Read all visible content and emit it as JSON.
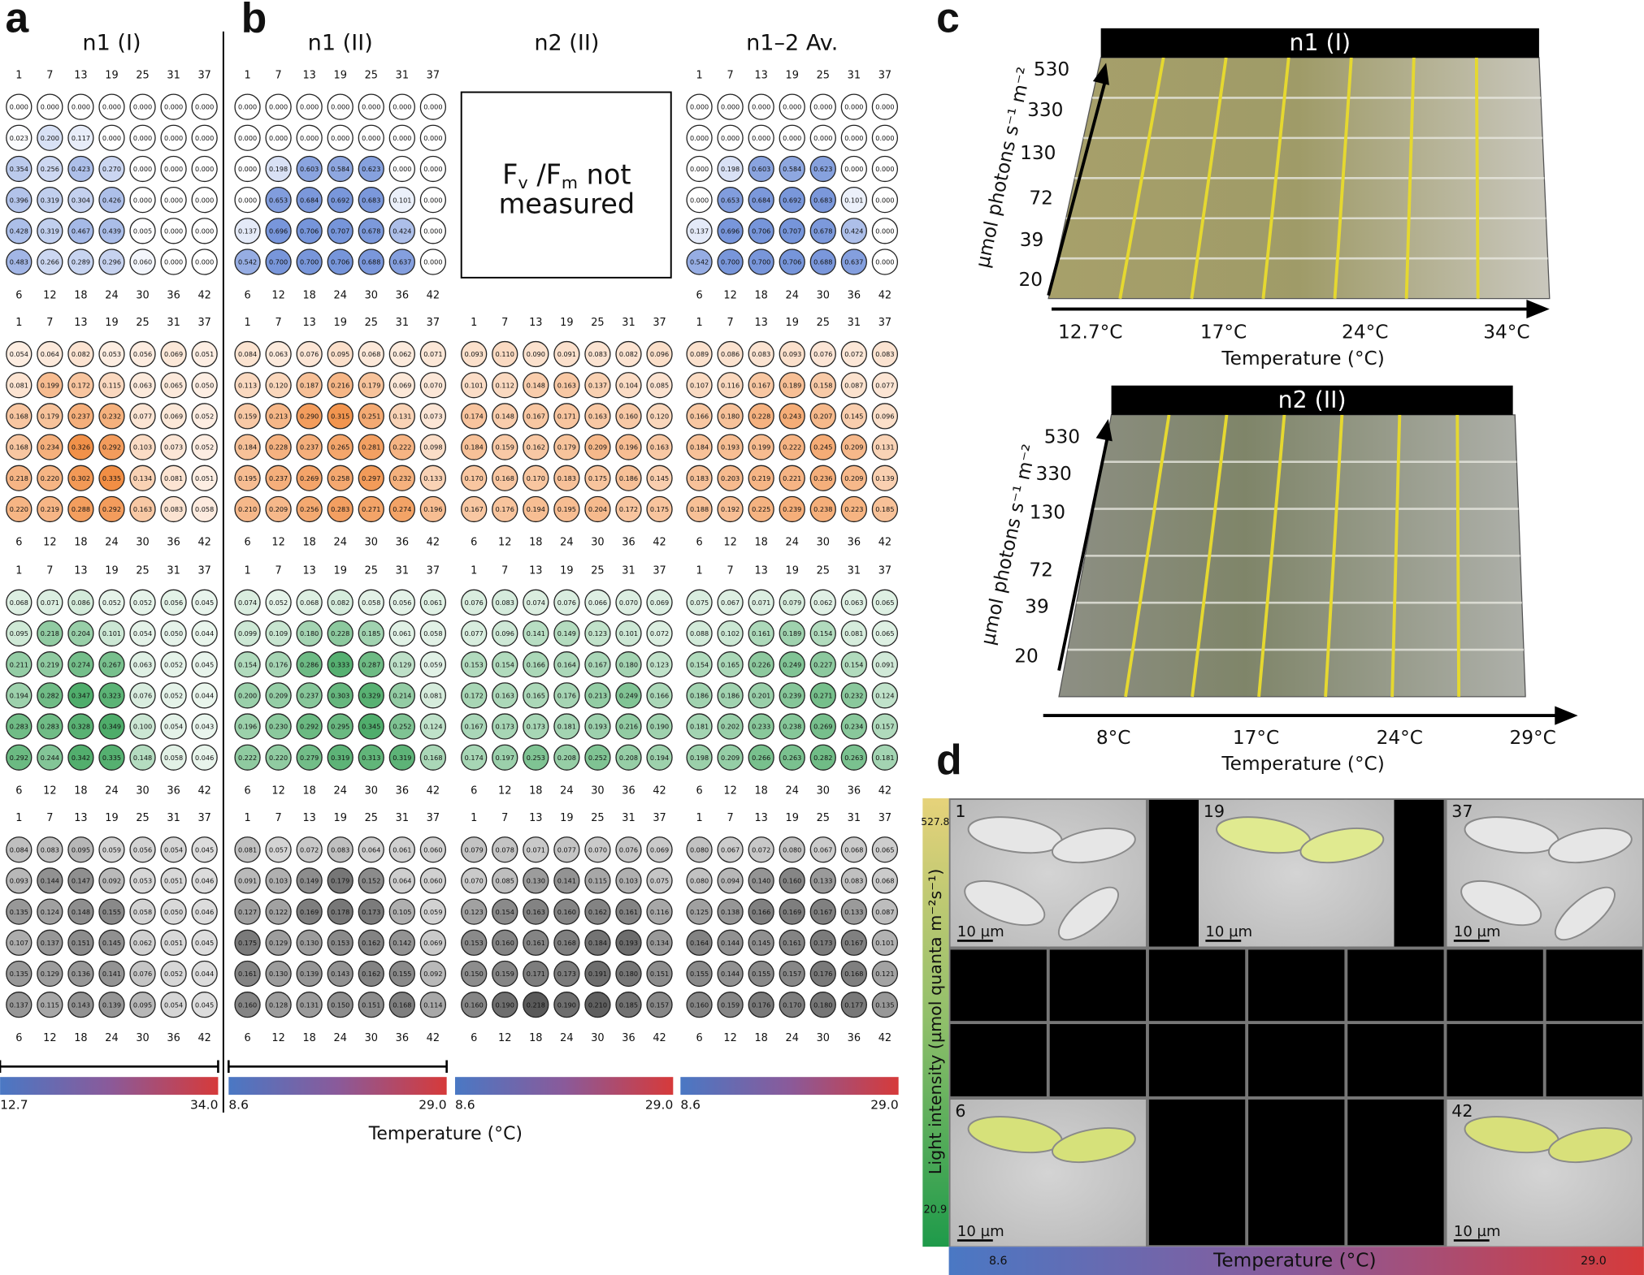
{
  "panel_labels": [
    "a",
    "b",
    "c",
    "d"
  ],
  "well_labels": {
    "top": [
      1,
      7,
      13,
      19,
      25,
      31,
      37
    ],
    "bottom": [
      6,
      12,
      18,
      24,
      30,
      36,
      42
    ]
  },
  "block_colors": [
    "#6f8fd8",
    "#f0883a",
    "#45a862",
    "#505050"
  ],
  "panel_a": {
    "title": "n1 (I)",
    "blocks": [
      [
        [
          "0.000",
          "0.000",
          "0.000",
          "0.000",
          "0.000",
          "0.000",
          "0.000"
        ],
        [
          "0.023",
          "0.200",
          "0.117",
          "0.000",
          "0.000",
          "0.000",
          "0.000"
        ],
        [
          "0.354",
          "0.256",
          "0.423",
          "0.270",
          "0.000",
          "0.000",
          "0.000"
        ],
        [
          "0.396",
          "0.319",
          "0.304",
          "0.426",
          "0.000",
          "0.000",
          "0.000"
        ],
        [
          "0.428",
          "0.319",
          "0.467",
          "0.439",
          "0.005",
          "0.000",
          "0.000"
        ],
        [
          "0.483",
          "0.266",
          "0.289",
          "0.296",
          "0.060",
          "0.000",
          "0.000"
        ]
      ],
      [
        [
          "0.054",
          "0.064",
          "0.082",
          "0.053",
          "0.056",
          "0.069",
          "0.051"
        ],
        [
          "0.081",
          "0.199",
          "0.172",
          "0.115",
          "0.063",
          "0.065",
          "0.050"
        ],
        [
          "0.168",
          "0.179",
          "0.237",
          "0.232",
          "0.077",
          "0.069",
          "0.052"
        ],
        [
          "0.168",
          "0.234",
          "0.326",
          "0.292",
          "0.103",
          "0.073",
          "0.052"
        ],
        [
          "0.218",
          "0.220",
          "0.302",
          "0.335",
          "0.134",
          "0.081",
          "0.051"
        ],
        [
          "0.220",
          "0.219",
          "0.288",
          "0.292",
          "0.163",
          "0.083",
          "0.058"
        ]
      ],
      [
        [
          "0.068",
          "0.071",
          "0.086",
          "0.052",
          "0.052",
          "0.056",
          "0.045"
        ],
        [
          "0.095",
          "0.218",
          "0.204",
          "0.101",
          "0.054",
          "0.050",
          "0.044"
        ],
        [
          "0.211",
          "0.219",
          "0.274",
          "0.267",
          "0.063",
          "0.052",
          "0.045"
        ],
        [
          "0.194",
          "0.282",
          "0.347",
          "0.323",
          "0.076",
          "0.052",
          "0.044"
        ],
        [
          "0.283",
          "0.283",
          "0.328",
          "0.349",
          "0.100",
          "0.054",
          "0.043"
        ],
        [
          "0.292",
          "0.244",
          "0.342",
          "0.335",
          "0.148",
          "0.058",
          "0.046"
        ]
      ],
      [
        [
          "0.084",
          "0.083",
          "0.095",
          "0.059",
          "0.056",
          "0.054",
          "0.045"
        ],
        [
          "0.093",
          "0.144",
          "0.147",
          "0.092",
          "0.053",
          "0.051",
          "0.046"
        ],
        [
          "0.135",
          "0.124",
          "0.148",
          "0.155",
          "0.058",
          "0.050",
          "0.046"
        ],
        [
          "0.107",
          "0.137",
          "0.151",
          "0.145",
          "0.062",
          "0.051",
          "0.045"
        ],
        [
          "0.135",
          "0.129",
          "0.136",
          "0.141",
          "0.076",
          "0.052",
          "0.044"
        ],
        [
          "0.137",
          "0.115",
          "0.143",
          "0.139",
          "0.095",
          "0.054",
          "0.045"
        ]
      ]
    ],
    "colorbar": {
      "min": "12.7",
      "max": "34.0"
    }
  },
  "panel_b": {
    "axis_label": "Temperature (°C)",
    "groups": [
      {
        "title": "n1 (II)",
        "blocks": [
          [
            [
              "0.000",
              "0.000",
              "0.000",
              "0.000",
              "0.000",
              "0.000",
              "0.000"
            ],
            [
              "0.000",
              "0.000",
              "0.000",
              "0.000",
              "0.000",
              "0.000",
              "0.000"
            ],
            [
              "0.000",
              "0.198",
              "0.603",
              "0.584",
              "0.623",
              "0.000",
              "0.000"
            ],
            [
              "0.000",
              "0.653",
              "0.684",
              "0.692",
              "0.683",
              "0.101",
              "0.000"
            ],
            [
              "0.137",
              "0.696",
              "0.706",
              "0.707",
              "0.678",
              "0.424",
              "0.000"
            ],
            [
              "0.542",
              "0.700",
              "0.700",
              "0.706",
              "0.688",
              "0.637",
              "0.000"
            ]
          ],
          [
            [
              "0.084",
              "0.063",
              "0.076",
              "0.095",
              "0.068",
              "0.062",
              "0.071"
            ],
            [
              "0.113",
              "0.120",
              "0.187",
              "0.216",
              "0.179",
              "0.069",
              "0.070"
            ],
            [
              "0.159",
              "0.213",
              "0.290",
              "0.315",
              "0.251",
              "0.131",
              "0.073"
            ],
            [
              "0.184",
              "0.228",
              "0.237",
              "0.265",
              "0.281",
              "0.222",
              "0.098"
            ],
            [
              "0.195",
              "0.237",
              "0.269",
              "0.258",
              "0.297",
              "0.232",
              "0.133"
            ],
            [
              "0.210",
              "0.209",
              "0.256",
              "0.283",
              "0.271",
              "0.274",
              "0.196"
            ]
          ],
          [
            [
              "0.074",
              "0.052",
              "0.068",
              "0.082",
              "0.058",
              "0.056",
              "0.061"
            ],
            [
              "0.099",
              "0.109",
              "0.180",
              "0.228",
              "0.185",
              "0.061",
              "0.058"
            ],
            [
              "0.154",
              "0.176",
              "0.286",
              "0.333",
              "0.287",
              "0.129",
              "0.059"
            ],
            [
              "0.200",
              "0.209",
              "0.237",
              "0.303",
              "0.329",
              "0.214",
              "0.081"
            ],
            [
              "0.196",
              "0.230",
              "0.292",
              "0.295",
              "0.345",
              "0.252",
              "0.124"
            ],
            [
              "0.222",
              "0.220",
              "0.279",
              "0.319",
              "0.313",
              "0.319",
              "0.168"
            ]
          ],
          [
            [
              "0.081",
              "0.057",
              "0.072",
              "0.083",
              "0.064",
              "0.061",
              "0.060"
            ],
            [
              "0.091",
              "0.103",
              "0.149",
              "0.179",
              "0.152",
              "0.064",
              "0.060"
            ],
            [
              "0.127",
              "0.122",
              "0.169",
              "0.178",
              "0.173",
              "0.105",
              "0.059"
            ],
            [
              "0.175",
              "0.129",
              "0.130",
              "0.153",
              "0.162",
              "0.142",
              "0.069"
            ],
            [
              "0.161",
              "0.130",
              "0.139",
              "0.143",
              "0.162",
              "0.155",
              "0.092"
            ],
            [
              "0.160",
              "0.128",
              "0.131",
              "0.150",
              "0.151",
              "0.168",
              "0.114"
            ]
          ]
        ],
        "colorbar": {
          "min": "8.6",
          "max": "29.0"
        }
      },
      {
        "title": "n2 (II)",
        "note": {
          "f1": "F",
          "sub1": "v",
          "f2": " /F",
          "sub2": "m",
          "rest": " not",
          "line2": "measured"
        },
        "blocks": [
          [
            [
              "0.093",
              "0.110",
              "0.090",
              "0.091",
              "0.083",
              "0.082",
              "0.096"
            ],
            [
              "0.101",
              "0.112",
              "0.148",
              "0.163",
              "0.137",
              "0.104",
              "0.085"
            ],
            [
              "0.174",
              "0.148",
              "0.167",
              "0.171",
              "0.163",
              "0.160",
              "0.120"
            ],
            [
              "0.184",
              "0.159",
              "0.162",
              "0.179",
              "0.209",
              "0.196",
              "0.163"
            ],
            [
              "0.170",
              "0.168",
              "0.170",
              "0.183",
              "0.175",
              "0.186",
              "0.145"
            ],
            [
              "0.167",
              "0.176",
              "0.194",
              "0.195",
              "0.204",
              "0.172",
              "0.175"
            ]
          ],
          [
            [
              "0.076",
              "0.083",
              "0.074",
              "0.076",
              "0.066",
              "0.070",
              "0.069"
            ],
            [
              "0.077",
              "0.096",
              "0.141",
              "0.149",
              "0.123",
              "0.101",
              "0.072"
            ],
            [
              "0.153",
              "0.154",
              "0.166",
              "0.164",
              "0.167",
              "0.180",
              "0.123"
            ],
            [
              "0.172",
              "0.163",
              "0.165",
              "0.176",
              "0.213",
              "0.249",
              "0.166"
            ],
            [
              "0.167",
              "0.173",
              "0.173",
              "0.181",
              "0.193",
              "0.216",
              "0.190"
            ],
            [
              "0.174",
              "0.197",
              "0.253",
              "0.208",
              "0.252",
              "0.208",
              "0.194"
            ]
          ],
          [
            [
              "0.079",
              "0.078",
              "0.071",
              "0.077",
              "0.070",
              "0.076",
              "0.069"
            ],
            [
              "0.070",
              "0.085",
              "0.130",
              "0.141",
              "0.115",
              "0.103",
              "0.075"
            ],
            [
              "0.123",
              "0.154",
              "0.163",
              "0.160",
              "0.162",
              "0.161",
              "0.116"
            ],
            [
              "0.153",
              "0.160",
              "0.161",
              "0.168",
              "0.184",
              "0.193",
              "0.134"
            ],
            [
              "0.150",
              "0.159",
              "0.171",
              "0.173",
              "0.191",
              "0.180",
              "0.151"
            ],
            [
              "0.160",
              "0.190",
              "0.218",
              "0.190",
              "0.210",
              "0.185",
              "0.157"
            ]
          ]
        ],
        "colorbar": {
          "min": "8.6",
          "max": "29.0"
        }
      },
      {
        "title": "n1–2 Av.",
        "blocks": [
          [
            [
              "0.000",
              "0.000",
              "0.000",
              "0.000",
              "0.000",
              "0.000",
              "0.000"
            ],
            [
              "0.000",
              "0.000",
              "0.000",
              "0.000",
              "0.000",
              "0.000",
              "0.000"
            ],
            [
              "0.000",
              "0.198",
              "0.603",
              "0.584",
              "0.623",
              "0.000",
              "0.000"
            ],
            [
              "0.000",
              "0.653",
              "0.684",
              "0.692",
              "0.683",
              "0.101",
              "0.000"
            ],
            [
              "0.137",
              "0.696",
              "0.706",
              "0.707",
              "0.678",
              "0.424",
              "0.000"
            ],
            [
              "0.542",
              "0.700",
              "0.700",
              "0.706",
              "0.688",
              "0.637",
              "0.000"
            ]
          ],
          [
            [
              "0.089",
              "0.086",
              "0.083",
              "0.093",
              "0.076",
              "0.072",
              "0.083"
            ],
            [
              "0.107",
              "0.116",
              "0.167",
              "0.189",
              "0.158",
              "0.087",
              "0.077"
            ],
            [
              "0.166",
              "0.180",
              "0.228",
              "0.243",
              "0.207",
              "0.145",
              "0.096"
            ],
            [
              "0.184",
              "0.193",
              "0.199",
              "0.222",
              "0.245",
              "0.209",
              "0.131"
            ],
            [
              "0.183",
              "0.203",
              "0.219",
              "0.221",
              "0.236",
              "0.209",
              "0.139"
            ],
            [
              "0.188",
              "0.192",
              "0.225",
              "0.239",
              "0.238",
              "0.223",
              "0.185"
            ]
          ],
          [
            [
              "0.075",
              "0.067",
              "0.071",
              "0.079",
              "0.062",
              "0.063",
              "0.065"
            ],
            [
              "0.088",
              "0.102",
              "0.161",
              "0.189",
              "0.154",
              "0.081",
              "0.065"
            ],
            [
              "0.154",
              "0.165",
              "0.226",
              "0.249",
              "0.227",
              "0.154",
              "0.091"
            ],
            [
              "0.186",
              "0.186",
              "0.201",
              "0.239",
              "0.271",
              "0.232",
              "0.124"
            ],
            [
              "0.181",
              "0.202",
              "0.233",
              "0.238",
              "0.269",
              "0.234",
              "0.157"
            ],
            [
              "0.198",
              "0.209",
              "0.266",
              "0.263",
              "0.282",
              "0.263",
              "0.181"
            ]
          ],
          [
            [
              "0.080",
              "0.067",
              "0.072",
              "0.080",
              "0.067",
              "0.068",
              "0.065"
            ],
            [
              "0.080",
              "0.094",
              "0.140",
              "0.160",
              "0.133",
              "0.083",
              "0.068"
            ],
            [
              "0.125",
              "0.138",
              "0.166",
              "0.169",
              "0.167",
              "0.133",
              "0.087"
            ],
            [
              "0.164",
              "0.144",
              "0.145",
              "0.161",
              "0.173",
              "0.167",
              "0.101"
            ],
            [
              "0.155",
              "0.144",
              "0.155",
              "0.157",
              "0.176",
              "0.168",
              "0.121"
            ],
            [
              "0.160",
              "0.159",
              "0.176",
              "0.170",
              "0.180",
              "0.177",
              "0.135"
            ]
          ]
        ],
        "colorbar": {
          "min": "8.6",
          "max": "29.0"
        }
      }
    ]
  },
  "panel_c": {
    "photos": [
      {
        "title": "n1 (I)",
        "y_label": "µmol photons s⁻¹ m⁻²",
        "y_ticks": [
          530,
          330,
          130,
          72,
          39,
          20
        ],
        "x_ticks": [
          "12.7°C",
          "17°C",
          "24°C",
          "34°C"
        ],
        "x_label": "Temperature (°C)"
      },
      {
        "title": "n2 (II)",
        "y_label": "µmol photons s⁻¹ m⁻²",
        "y_ticks": [
          530,
          330,
          130,
          72,
          39,
          20
        ],
        "x_ticks": [
          "8°C",
          "17°C",
          "24°C",
          "29°C"
        ],
        "x_label": "Temperature (°C)"
      }
    ]
  },
  "panel_d": {
    "image_labels": [
      1,
      19,
      37,
      6,
      42
    ],
    "scale_bar": "10 µm",
    "y_label": "Light intensity (µmol quanta m⁻²s⁻¹)",
    "y_max": "527.8",
    "y_min": "20.9",
    "x_label": "Temperature (°C)",
    "x_min": "8.6",
    "x_max": "29.0"
  }
}
